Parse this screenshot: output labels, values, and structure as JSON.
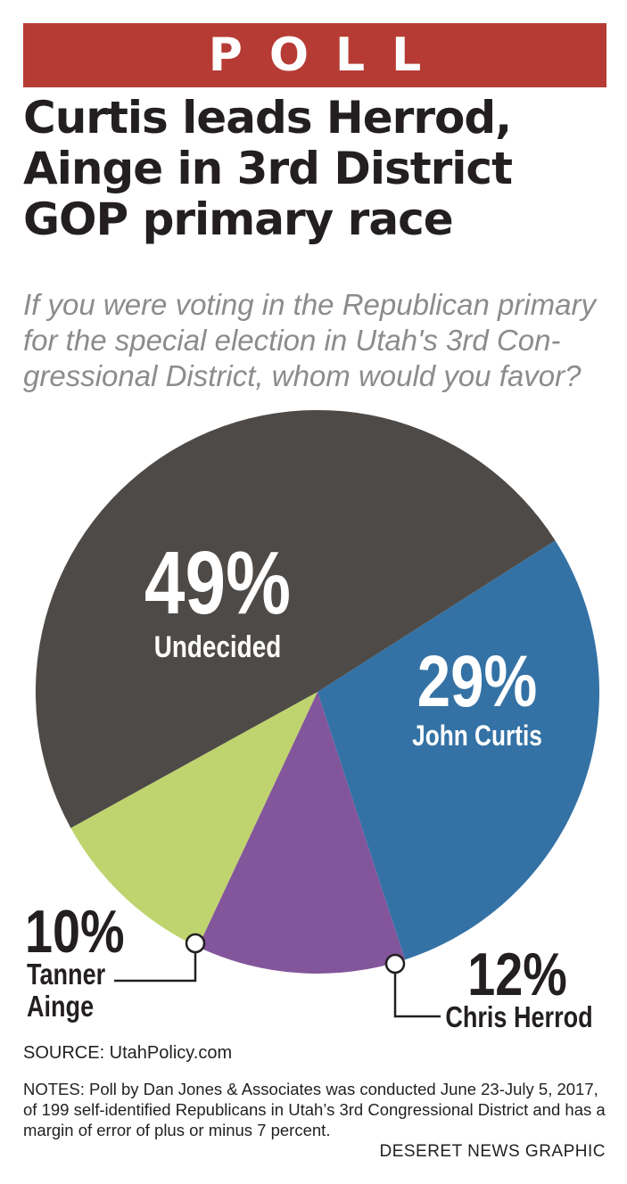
{
  "banner": "POLL",
  "headline": "Curtis leads Herrod, Ainge in 3rd District GOP primary race",
  "question": "If you were voting in the Republican primary for the special election in Utah's 3rd Con-gressional District, whom would you favor?",
  "source": "SOURCE: UtahPolicy.com",
  "notes": "NOTES: Poll by Dan Jones & Associates was conducted June 23-July 5, 2017, of 199 self-identified Republicans in Utah’s 3rd Congressional District and has a margin of error of plus or minus 7 percent.",
  "credit": "DESERET NEWS GRAPHIC",
  "chart_data": {
    "type": "pie",
    "title": "",
    "slices": [
      {
        "label": "Undecided",
        "value": 49,
        "value_label": "49%",
        "color": "#4e4a47"
      },
      {
        "label": "John Curtis",
        "value": 29,
        "value_label": "29%",
        "color": "#3472a5"
      },
      {
        "label": "Chris Herrod",
        "value": 12,
        "value_label": "12%",
        "color": "#83559b"
      },
      {
        "label": "Tanner Ainge",
        "value": 10,
        "value_label": "10%",
        "color": "#bfd46f"
      }
    ]
  }
}
